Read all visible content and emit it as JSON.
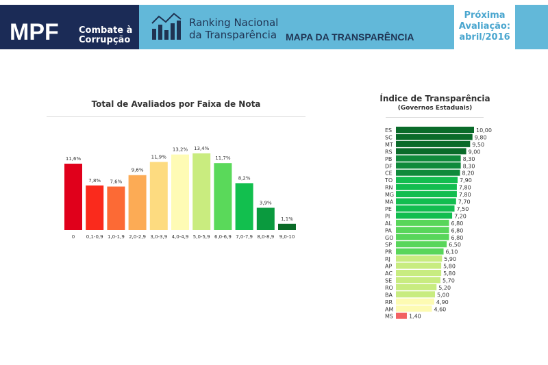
{
  "header": {
    "logo": "MPF",
    "logo_sub1": "Combate à",
    "logo_sub2": "Corrupção",
    "ranking1": "Ranking Nacional",
    "ranking2": "da Transparência",
    "page_title": "MAPA DA TRANSPARÊNCIA",
    "next1": "Próxima",
    "next2": "Avaliação:",
    "next3": "abril/2016"
  },
  "chart_data": [
    {
      "type": "bar",
      "title": "Total de Avaliados por Faixa de Nota",
      "categories": [
        "0",
        "0,1-0,9",
        "1,0-1,9",
        "2,0-2,9",
        "3,0-3,9",
        "4,0-4,9",
        "5,0-5,9",
        "6,0-6,9",
        "7,0-7,9",
        "8,0-8,9",
        "9,0-10"
      ],
      "values": [
        11.6,
        7.8,
        7.6,
        9.6,
        11.9,
        13.2,
        13.4,
        11.7,
        8.2,
        3.9,
        1.1
      ],
      "labels": [
        "11,6%",
        "7,8%",
        "7,6%",
        "9,6%",
        "11,9%",
        "13,2%",
        "13,4%",
        "11,7%",
        "8,2%",
        "3,9%",
        "1,1%"
      ],
      "colors": [
        "#e0001b",
        "#fa2a1c",
        "#fc6a35",
        "#fcab55",
        "#fddb80",
        "#fefbb5",
        "#c9ec7f",
        "#5ad95a",
        "#12bf4e",
        "#0a9a3e",
        "#0a6b27"
      ]
    },
    {
      "type": "bar",
      "orientation": "horizontal",
      "title": "Índice de Transparência",
      "subtitle": "(Governos Estaduais)",
      "categories": [
        "ES",
        "SC",
        "MT",
        "RS",
        "PB",
        "DF",
        "CE",
        "TO",
        "RN",
        "MG",
        "MA",
        "PE",
        "PI",
        "AL",
        "PA",
        "GO",
        "SP",
        "PR",
        "RJ",
        "AP",
        "AC",
        "SE",
        "RO",
        "BA",
        "RR",
        "AM",
        "MS"
      ],
      "values": [
        10,
        9.8,
        9.5,
        9,
        8.3,
        8.3,
        8.2,
        7.9,
        7.8,
        7.8,
        7.7,
        7.5,
        7.2,
        6.8,
        6.8,
        6.8,
        6.5,
        6.1,
        5.9,
        5.8,
        5.8,
        5.7,
        5.2,
        5.0,
        4.9,
        4.6,
        1.4
      ],
      "labels": [
        "10,00",
        "9,80",
        "9,50",
        "9,00",
        "8,30",
        "8,30",
        "8,20",
        "7,90",
        "7,80",
        "7,80",
        "7,70",
        "7,50",
        "7,20",
        "6,80",
        "6,80",
        "6,80",
        "6,50",
        "6,10",
        "5,90",
        "5,80",
        "5,80",
        "5,70",
        "5,20",
        "5,00",
        "4,90",
        "4,60",
        "1,40"
      ],
      "xlim": [
        0,
        10
      ]
    }
  ]
}
